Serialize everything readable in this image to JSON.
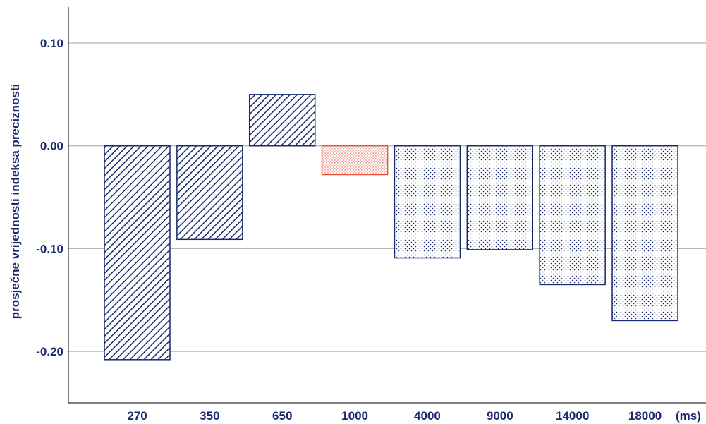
{
  "chart_data": {
    "type": "bar",
    "title": "",
    "xlabel": "",
    "x_unit": "(ms)",
    "ylabel": "prosječne vrijednosti indeksa preciznosti",
    "categories": [
      "270",
      "350",
      "650",
      "1000",
      "4000",
      "9000",
      "14000",
      "18000"
    ],
    "values": [
      -0.208,
      -0.091,
      0.05,
      -0.028,
      -0.109,
      -0.101,
      -0.135,
      -0.17
    ],
    "patterns": [
      "hatch",
      "hatch",
      "hatch",
      "dots-red",
      "dots",
      "dots",
      "dots",
      "dots"
    ],
    "ylim": [
      -0.25,
      0.135
    ],
    "yticks": [
      0.1,
      0.0,
      -0.1,
      -0.2
    ],
    "ytick_labels": [
      "0.10",
      "0.00",
      "-0.10",
      "-0.20"
    ],
    "grid": true,
    "legend": "none",
    "colors": {
      "primary": "#1a2a6c",
      "highlight": "#e8503a",
      "grid": "#b4b4b4"
    }
  }
}
